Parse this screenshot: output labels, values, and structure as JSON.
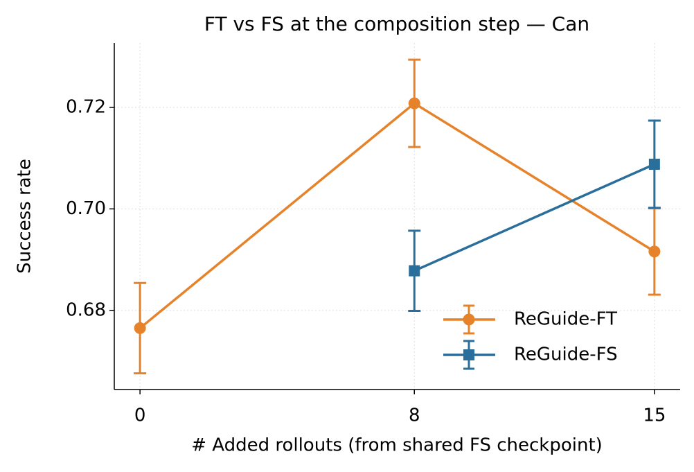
{
  "chart_data": {
    "type": "line",
    "title": "FT vs FS at the composition step — Can",
    "x_label": "# Added rollouts (from shared FS checkpoint)",
    "y_label": "Success rate",
    "x": [
      0,
      8,
      15
    ],
    "series": [
      {
        "name": "ReGuide-FT",
        "color": "#e6832a",
        "marker": "circle",
        "values": [
          0.6765,
          0.7208,
          0.6916
        ],
        "errors": [
          0.0089,
          0.0086,
          0.0085
        ]
      },
      {
        "name": "ReGuide-FS",
        "color": "#2a6e9b",
        "marker": "square",
        "values": [
          null,
          0.6878,
          0.7088
        ],
        "errors": [
          null,
          0.0079,
          0.0086
        ]
      }
    ],
    "xlim": [
      -0.75,
      15.75
    ],
    "xticks": [
      0,
      8,
      15
    ],
    "ylim": [
      0.6644,
      0.7327
    ],
    "yticks": [
      {
        "value": 0.68,
        "label": "0.68"
      },
      {
        "value": 0.7,
        "label": "0.70"
      },
      {
        "value": 0.72,
        "label": "0.72"
      }
    ],
    "grid": true,
    "legend": "lower right"
  }
}
